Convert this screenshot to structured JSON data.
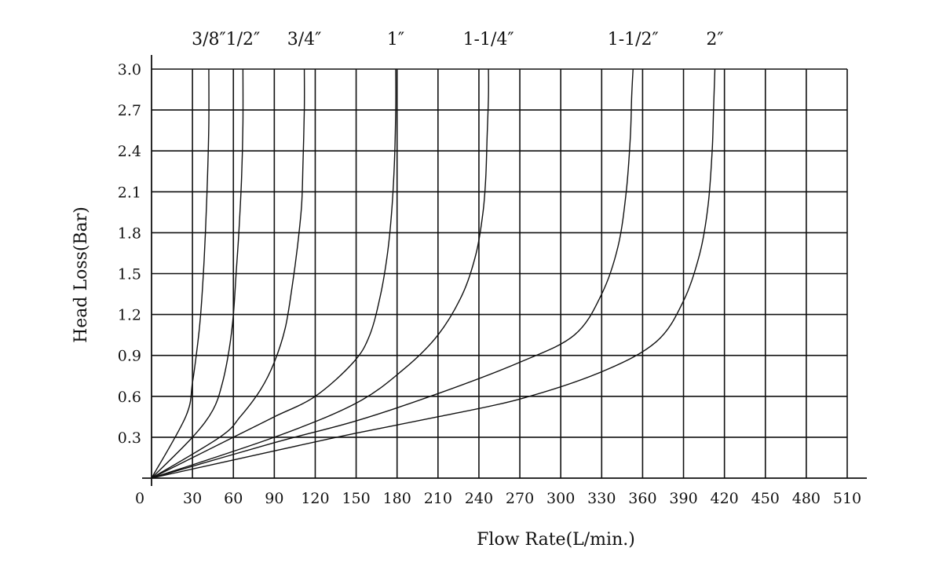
{
  "chart_data": {
    "type": "line",
    "title": "",
    "xlabel": "Flow Rate(L/min.)",
    "ylabel": "Head Loss(Bar)",
    "xlim": [
      0,
      510
    ],
    "ylim": [
      0,
      3.0
    ],
    "x_ticks": [
      30,
      60,
      90,
      120,
      150,
      180,
      210,
      240,
      270,
      300,
      330,
      360,
      390,
      420,
      450,
      480,
      510
    ],
    "y_ticks": [
      0.3,
      0.6,
      0.9,
      1.2,
      1.5,
      1.8,
      2.1,
      2.4,
      2.7,
      3.0
    ],
    "x_tick_labels": [
      "30",
      "60",
      "90",
      "120",
      "150",
      "180",
      "210",
      "240",
      "270",
      "300",
      "330",
      "360",
      "390",
      "420",
      "450",
      "480",
      "510"
    ],
    "y_tick_labels": [
      "0.3",
      "0.6",
      "0.9",
      "1.2",
      "1.5",
      "1.8",
      "2.1",
      "2.4",
      "2.7",
      "3.0"
    ],
    "origin_label": "0",
    "grid": true,
    "legend": "series labels above plot",
    "series": [
      {
        "name": "3/8″",
        "x": [
          0,
          25,
          30,
          34,
          36,
          38,
          39.5,
          41,
          42,
          42
        ],
        "y": [
          0,
          0.45,
          0.7,
          1.0,
          1.2,
          1.5,
          1.8,
          2.2,
          2.6,
          3.0
        ]
      },
      {
        "name": "1/2″",
        "x": [
          0,
          30,
          45,
          52,
          57,
          60,
          62,
          64,
          66,
          67,
          67
        ],
        "y": [
          0,
          0.3,
          0.5,
          0.7,
          0.95,
          1.2,
          1.5,
          1.8,
          2.2,
          2.6,
          3.0
        ]
      },
      {
        "name": "3/4″",
        "x": [
          0,
          50,
          65,
          80,
          90,
          98,
          103,
          107,
          110,
          111,
          112,
          112
        ],
        "y": [
          0,
          0.3,
          0.45,
          0.65,
          0.85,
          1.1,
          1.4,
          1.7,
          2.0,
          2.3,
          2.7,
          3.0
        ]
      },
      {
        "name": "1″",
        "x": [
          0,
          60,
          90,
          120,
          148,
          160,
          168,
          173,
          176,
          178,
          179,
          179
        ],
        "y": [
          0,
          0.3,
          0.45,
          0.6,
          0.85,
          1.05,
          1.35,
          1.65,
          1.95,
          2.3,
          2.7,
          3.0
        ]
      },
      {
        "name": "1-1/4″",
        "x": [
          0,
          90,
          150,
          185,
          210,
          228,
          238,
          243,
          245,
          246,
          247,
          247
        ],
        "y": [
          0,
          0.3,
          0.55,
          0.8,
          1.05,
          1.35,
          1.65,
          1.95,
          2.2,
          2.5,
          2.8,
          3.0
        ]
      },
      {
        "name": "1-1/2″",
        "x": [
          0,
          90,
          150,
          210,
          270,
          310,
          330,
          342,
          348,
          351,
          352,
          353
        ],
        "y": [
          0,
          0.26,
          0.42,
          0.62,
          0.85,
          1.05,
          1.35,
          1.7,
          2.1,
          2.5,
          2.8,
          3.0
        ]
      },
      {
        "name": "2″",
        "x": [
          0,
          90,
          150,
          210,
          270,
          330,
          370,
          390,
          402,
          408,
          411,
          412,
          413
        ],
        "y": [
          0,
          0.2,
          0.33,
          0.45,
          0.58,
          0.78,
          1.0,
          1.3,
          1.65,
          2.0,
          2.4,
          2.7,
          3.0
        ]
      }
    ]
  }
}
